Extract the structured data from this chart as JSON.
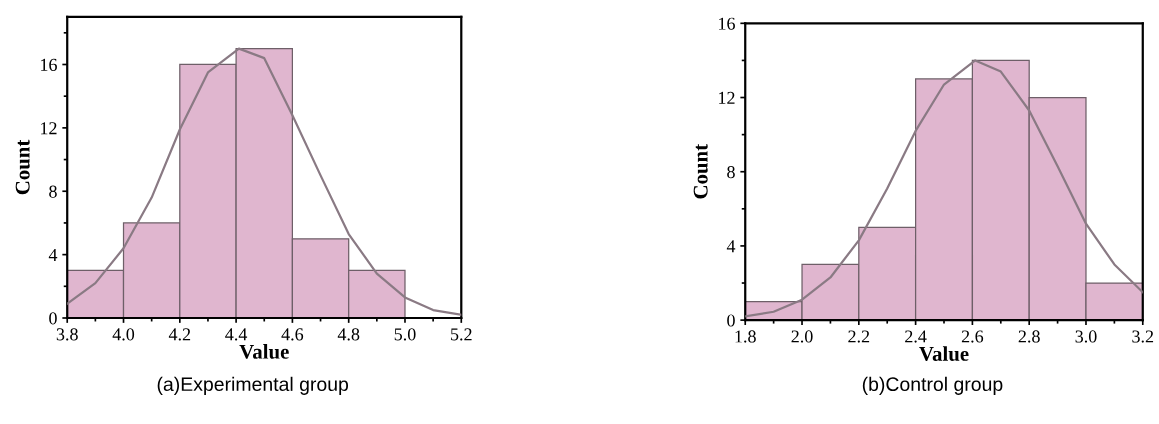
{
  "chart_data": [
    {
      "type": "histogram",
      "title": "(a)Experimental group",
      "xlabel": "Value",
      "ylabel": "Count",
      "bins": [
        3.8,
        4.0,
        4.2,
        4.4,
        4.6,
        4.8,
        5.0
      ],
      "values": [
        3,
        6,
        16,
        17,
        5,
        3
      ],
      "color": "#e0b6cf",
      "xlim": [
        3.8,
        5.2
      ],
      "xticks": [
        3.8,
        {
          "value": 4.0,
          "label": "4.0"
        },
        4.2,
        4.4,
        4.6,
        4.8,
        {
          "value": 5.0,
          "label": "5.0"
        },
        5.2
      ],
      "ylim": [
        0,
        19
      ],
      "yticks": [
        0,
        4,
        8,
        12,
        16
      ],
      "grid": false,
      "legend": false,
      "series": [
        {
          "type": "line",
          "color": "#8a7a84",
          "x": [
            3.8,
            3.9,
            4.0,
            4.1,
            4.2,
            4.3,
            4.41,
            4.5,
            4.6,
            4.7,
            4.8,
            4.9,
            5.0,
            5.1,
            5.2
          ],
          "values": [
            0.9,
            2.2,
            4.4,
            7.6,
            11.9,
            15.5,
            17,
            16.4,
            12.8,
            9.0,
            5.3,
            2.8,
            1.3,
            0.5,
            0.2
          ]
        }
      ]
    },
    {
      "type": "histogram",
      "title": "(b)Control group",
      "xlabel": "Value",
      "ylabel": "Count",
      "bins": [
        1.8,
        2.0,
        2.2,
        2.4,
        2.6,
        2.8,
        3.0,
        3.2
      ],
      "values": [
        1,
        3,
        5,
        13,
        14,
        12,
        2
      ],
      "color": "#e0b6cf",
      "xlim": [
        1.8,
        3.2
      ],
      "xticks": [
        1.8,
        {
          "value": 2.0,
          "label": "2.0"
        },
        2.2,
        2.4,
        2.6,
        2.8,
        {
          "value": 3.0,
          "label": "3.0"
        },
        3.2
      ],
      "ylim": [
        0,
        16
      ],
      "yticks": [
        0,
        4,
        8,
        12,
        16
      ],
      "grid": false,
      "legend": false,
      "series": [
        {
          "type": "line",
          "color": "#8a7a84",
          "x": [
            1.8,
            1.9,
            2.0,
            2.1,
            2.2,
            2.3,
            2.4,
            2.5,
            2.61,
            2.7,
            2.8,
            2.9,
            3.0,
            3.1,
            3.2
          ],
          "values": [
            0.2,
            0.45,
            1.1,
            2.3,
            4.3,
            7.1,
            10.2,
            12.7,
            14,
            13.4,
            11.3,
            8.3,
            5.2,
            3.0,
            1.5
          ]
        }
      ]
    }
  ]
}
